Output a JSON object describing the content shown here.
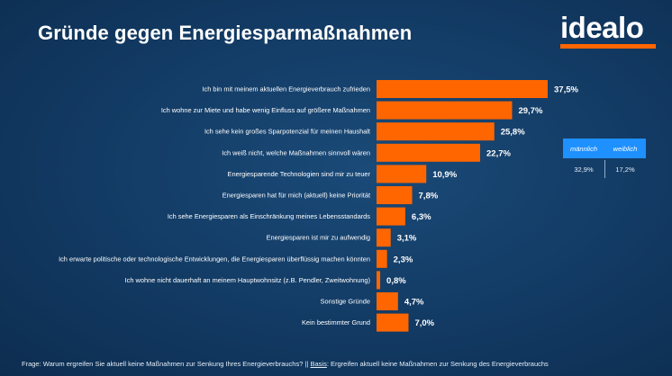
{
  "title": "Gründe gegen Energiesparmaßnahmen",
  "logo": {
    "text": "idealo",
    "accent_color": "#ff6600"
  },
  "colors": {
    "background": "#123a63",
    "bar": "#ff6600",
    "gender_box": "#1e90ff"
  },
  "gender": {
    "labels": [
      "männlich",
      "weiblich"
    ],
    "values": [
      "32,9%",
      "17,2%"
    ]
  },
  "footer": {
    "frage_label": "Frage:",
    "frage_text": "Warum ergreifen Sie aktuell keine Maßnahmen zur Senkung Ihres Energieverbrauchs? ||",
    "basis_label": "Basis",
    "basis_text": ": Ergreifen aktuell keine Maßnahmen zur Senkung des Energieverbrauchs"
  },
  "chart_data": {
    "type": "bar",
    "orientation": "horizontal",
    "title": "Gründe gegen Energiesparmaßnahmen",
    "unit": "%",
    "xlim": [
      0,
      40
    ],
    "categories": [
      "Ich bin mit meinem aktuellen Energieverbrauch zufrieden",
      "Ich wohne zur Miete und habe wenig Einfluss auf größere Maßnahmen",
      "Ich sehe kein großes Sparpotenzial für meinen Haushalt",
      "Ich weiß nicht, welche Maßnahmen sinnvoll wären",
      "Energiesparende Technologien sind mir zu teuer",
      "Energiesparen hat für mich (aktuell) keine Priorität",
      "Ich sehe Energiesparen als Einschränkung meines Lebensstandards",
      "Energiesparen ist mir zu aufwendig",
      "Ich erwarte politische oder technologische Entwicklungen, die Energiesparen überflüssig machen könnten",
      "Ich wohne nicht dauerhaft an meinem Hauptwohnsitz (z.B. Pendler, Zweitwohnung)",
      "Sonstige Gründe",
      "Kein bestimmter Grund"
    ],
    "values": [
      37.5,
      29.7,
      25.8,
      22.7,
      10.9,
      7.8,
      6.3,
      3.1,
      2.3,
      0.8,
      4.7,
      7.0
    ],
    "value_labels": [
      "37,5%",
      "29,7%",
      "25,8%",
      "22,7%",
      "10,9%",
      "7,8%",
      "6,3%",
      "3,1%",
      "2,3%",
      "0,8%",
      "4,7%",
      "7,0%"
    ]
  }
}
